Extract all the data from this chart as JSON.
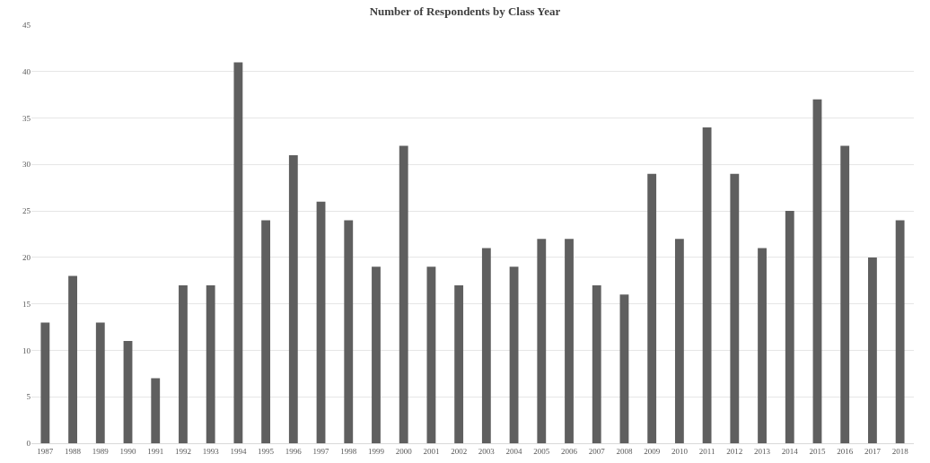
{
  "chart_data": {
    "type": "bar",
    "title": "Number of Respondents by Class Year",
    "categories": [
      "1987",
      "1988",
      "1989",
      "1990",
      "1991",
      "1992",
      "1993",
      "1994",
      "1995",
      "1996",
      "1997",
      "1998",
      "1999",
      "2000",
      "2001",
      "2002",
      "2003",
      "2004",
      "2005",
      "2006",
      "2007",
      "2008",
      "2009",
      "2010",
      "2011",
      "2012",
      "2013",
      "2014",
      "2015",
      "2016",
      "2017",
      "2018"
    ],
    "values": [
      13,
      18,
      13,
      11,
      7,
      17,
      17,
      41,
      24,
      31,
      26,
      24,
      19,
      32,
      19,
      17,
      21,
      19,
      22,
      22,
      17,
      16,
      29,
      22,
      34,
      29,
      21,
      25,
      37,
      32,
      20,
      24
    ],
    "color": "#5f5f5f",
    "ylim": [
      0,
      45
    ],
    "yticks": [
      0,
      5,
      10,
      15,
      20,
      25,
      30,
      35,
      40,
      45
    ],
    "grid": "y"
  }
}
